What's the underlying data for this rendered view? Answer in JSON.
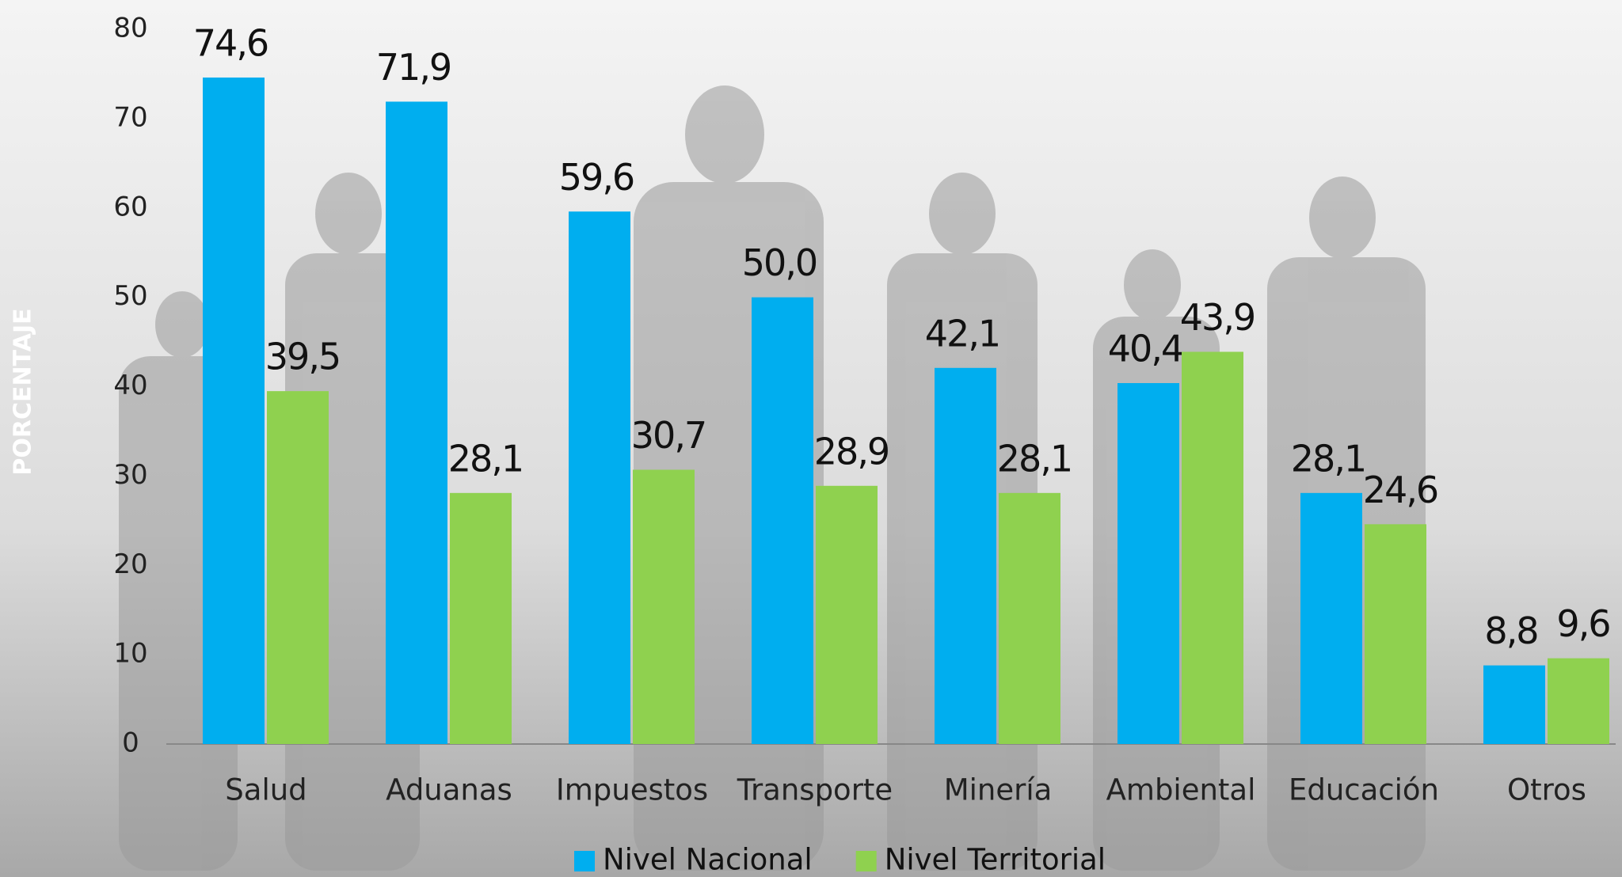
{
  "chart_data": {
    "type": "bar",
    "y_label": "PORCENTAJE",
    "categories": [
      "Salud",
      "Aduanas",
      "Impuestos",
      "Transporte",
      "Minería",
      "Ambiental",
      "Educación",
      "Otros"
    ],
    "series": [
      {
        "name": "Nivel Nacional",
        "color": "#00aeef",
        "values": [
          74.6,
          71.9,
          59.6,
          50.0,
          42.1,
          40.4,
          28.1,
          8.8
        ],
        "value_labels": [
          "74,6",
          "71,9",
          "59,6",
          "50,0",
          "42,1",
          "40,4",
          "28,1",
          "8,8"
        ]
      },
      {
        "name": "Nivel Territorial",
        "color": "#8fd14f",
        "values": [
          39.5,
          28.1,
          30.7,
          28.9,
          28.1,
          43.9,
          24.6,
          9.6
        ],
        "value_labels": [
          "39,5",
          "28,1",
          "30,7",
          "28,9",
          "28,1",
          "43,9",
          "24,6",
          "9,6"
        ]
      }
    ],
    "ylim": [
      0,
      80
    ],
    "yticks": [
      0,
      10,
      20,
      30,
      40,
      50,
      60,
      70,
      80
    ],
    "legend": "bottom"
  }
}
